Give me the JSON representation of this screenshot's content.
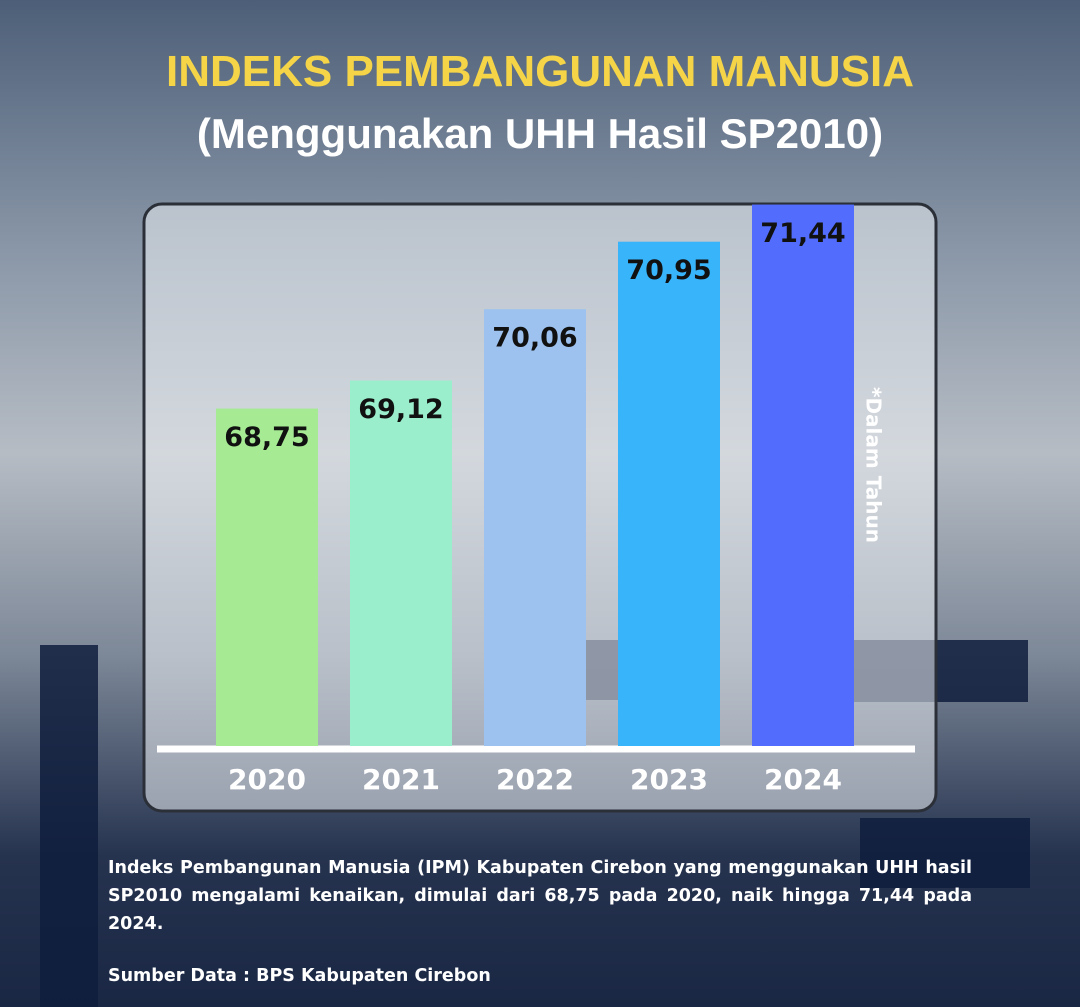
{
  "chart_data": {
    "type": "bar",
    "title": "INDEKS PEMBANGUNAN MANUSIA",
    "subtitle": "(Menggunakan UHH Hasil SP2010)",
    "categories": [
      "2020",
      "2021",
      "2022",
      "2023",
      "2024"
    ],
    "values": [
      68.75,
      69.12,
      70.06,
      70.95,
      71.44
    ],
    "value_labels": [
      "68,75",
      "69,12",
      "70,06",
      "70,95",
      "71,44"
    ],
    "colors": [
      "#a6eb94",
      "#9aeecb",
      "#9dc2f0",
      "#38b4fb",
      "#526dfd"
    ],
    "ylim": [
      64.3,
      71.5
    ],
    "note": "*Dalam Tahun",
    "description": "Indeks Pembangunan Manusia (IPM) Kabupaten Cirebon yang menggunakan UHH hasil SP2010 mengalami kenaikan, dimulai dari 68,75 pada 2020, naik hingga 71,44 pada 2024.",
    "source": "Sumber Data : BPS Kabupaten Cirebon"
  }
}
